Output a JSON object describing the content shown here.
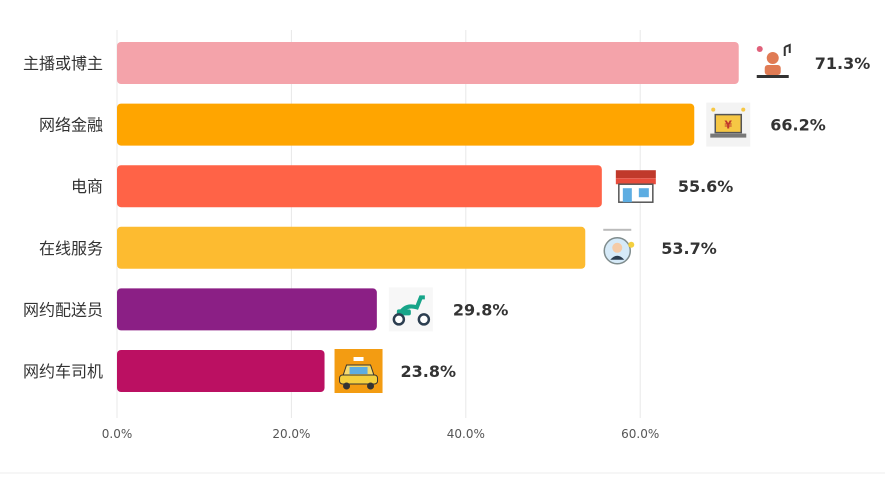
{
  "chart_data": {
    "type": "bar",
    "orientation": "horizontal",
    "categories": [
      "主播或博主",
      "网络金融",
      "电商",
      "在线服务",
      "网约配送员",
      "网约车司机"
    ],
    "values": [
      71.3,
      66.2,
      55.6,
      53.7,
      29.8,
      23.8
    ],
    "value_labels": [
      "71.3%",
      "66.2%",
      "55.6%",
      "53.7%",
      "29.8%",
      "23.8%"
    ],
    "colors": [
      "#F4A3AA",
      "#FFA500",
      "#FF6347",
      "#FDBB30",
      "#8B1F85",
      "#BB1062"
    ],
    "icons": [
      "streamer-icon",
      "finance-icon",
      "shop-icon",
      "customer-service-icon",
      "scooter-icon",
      "taxi-icon"
    ],
    "xticks": [
      "0.0%",
      "20.0%",
      "40.0%",
      "60.0%"
    ],
    "xtick_values": [
      0,
      20,
      40,
      60
    ],
    "xlim": [
      0,
      80
    ],
    "grid": true,
    "title": "",
    "xlabel": "",
    "ylabel": ""
  }
}
